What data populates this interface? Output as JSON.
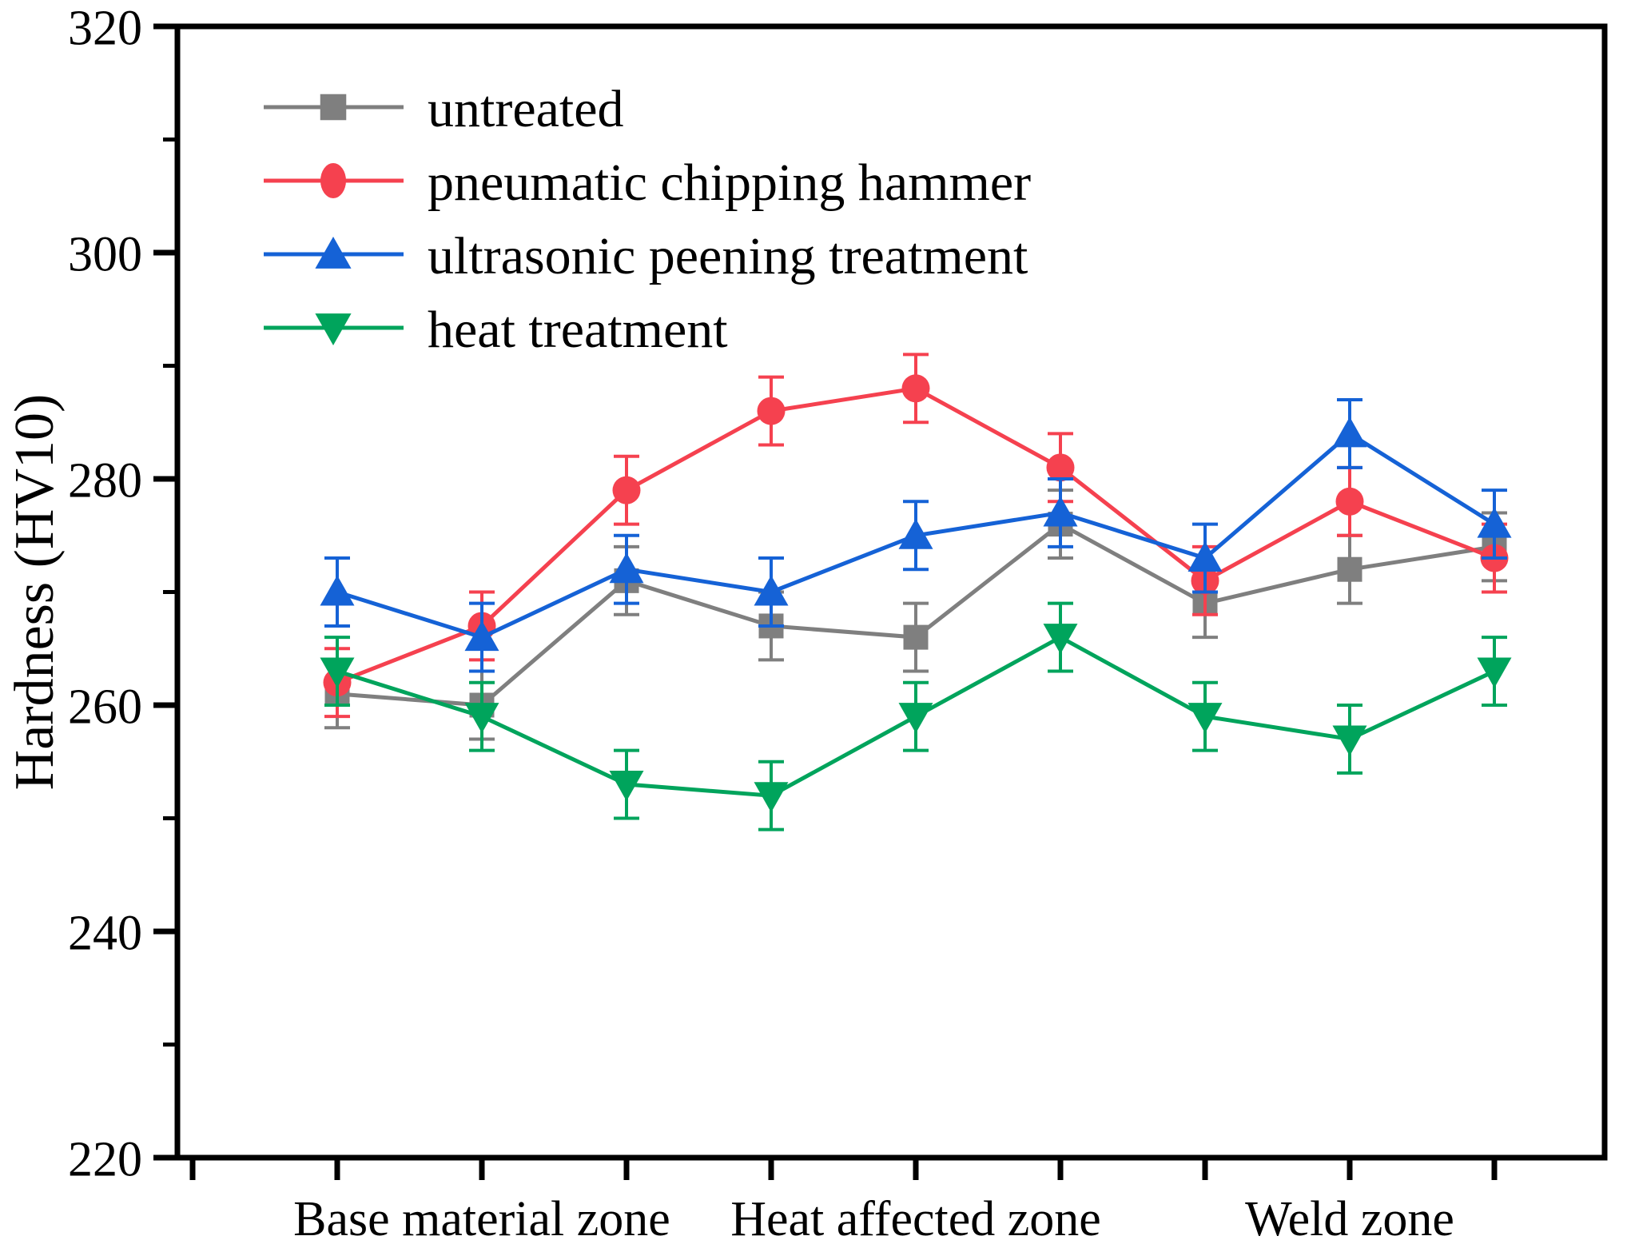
{
  "chart_data": {
    "type": "line",
    "title": "",
    "xlabel": "",
    "ylabel": "Hardness (HV10)",
    "ylim": [
      220,
      320
    ],
    "y_major_ticks": [
      220,
      240,
      260,
      280,
      300,
      320
    ],
    "y_minor_ticks": [
      230,
      250,
      270,
      290,
      310
    ],
    "x_point_count": 9,
    "x_zone_labels": [
      {
        "label": "Base material zone",
        "point_index": 1
      },
      {
        "label": "Heat affected zone",
        "point_index": 4
      },
      {
        "label": "Weld zone",
        "point_index": 7
      }
    ],
    "grid": false,
    "legend_position": "top-left-inside",
    "axis_color": "#000000",
    "background": "#ffffff",
    "series": [
      {
        "name": "untreated",
        "marker": "square",
        "color": "#7f7f7f",
        "values": [
          261,
          260,
          271,
          267,
          266,
          276,
          269,
          272,
          274
        ],
        "error": 3
      },
      {
        "name": "pneumatic chipping hammer",
        "marker": "circle",
        "color": "#F5414F",
        "values": [
          262,
          267,
          279,
          286,
          288,
          281,
          271,
          278,
          273
        ],
        "error": 3
      },
      {
        "name": "ultrasonic peening treatment",
        "marker": "triangle-up",
        "color": "#1562D6",
        "values": [
          270,
          266,
          272,
          270,
          275,
          277,
          273,
          284,
          276
        ],
        "error": 3
      },
      {
        "name": "heat treatment",
        "marker": "triangle-down",
        "color": "#00A45C",
        "values": [
          263,
          259,
          253,
          252,
          259,
          266,
          259,
          257,
          263
        ],
        "error": 3
      }
    ]
  }
}
